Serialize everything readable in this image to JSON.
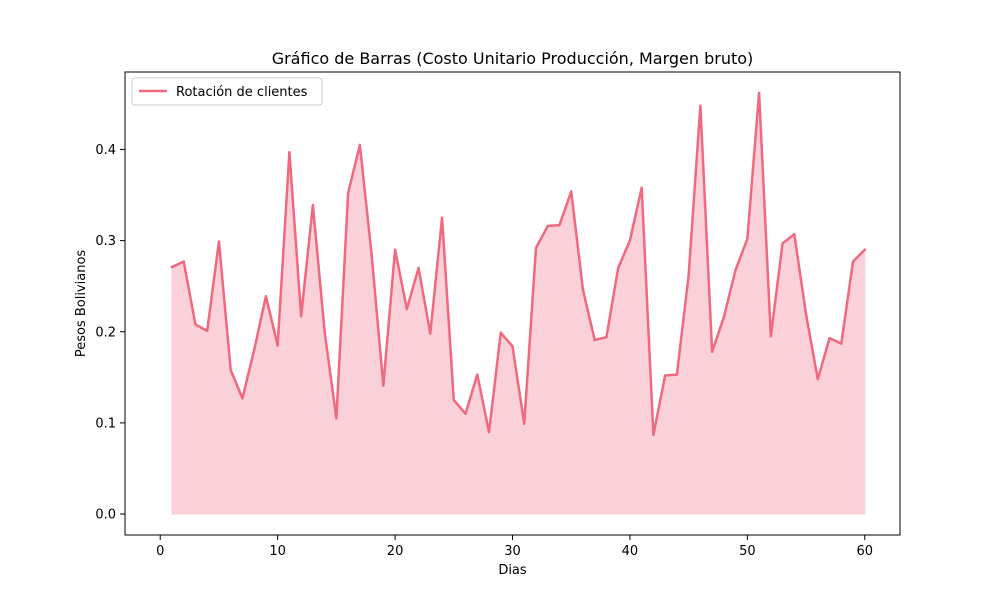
{
  "chart_data": {
    "type": "area",
    "title": "Gráfico de Barras (Costo Unitario Producción, Margen bruto)",
    "xlabel": "Dias",
    "ylabel": "Pesos Bolivianos",
    "xlim": [
      -3,
      63
    ],
    "ylim": [
      -0.023,
      0.485
    ],
    "xticks": [
      0,
      10,
      20,
      30,
      40,
      50,
      60
    ],
    "yticks": [
      0.0,
      0.1,
      0.2,
      0.3,
      0.4
    ],
    "ytick_labels": [
      "0.0",
      "0.1",
      "0.2",
      "0.3",
      "0.4"
    ],
    "grid": false,
    "legend_position": "top-left",
    "series": [
      {
        "name": "Rotación de clientes",
        "color": "#f0697f",
        "fill_color": "#fbd1d9",
        "x": [
          1,
          2,
          3,
          4,
          5,
          6,
          7,
          8,
          9,
          10,
          11,
          12,
          13,
          14,
          15,
          16,
          17,
          18,
          19,
          20,
          21,
          22,
          23,
          24,
          25,
          26,
          27,
          28,
          29,
          30,
          31,
          32,
          33,
          34,
          35,
          36,
          37,
          38,
          39,
          40,
          41,
          42,
          43,
          44,
          45,
          46,
          47,
          48,
          49,
          50,
          51,
          52,
          53,
          54,
          55,
          56,
          57,
          58,
          59,
          60
        ],
        "values": [
          0.271,
          0.277,
          0.208,
          0.201,
          0.299,
          0.158,
          0.127,
          0.18,
          0.239,
          0.185,
          0.397,
          0.217,
          0.339,
          0.2,
          0.105,
          0.352,
          0.405,
          0.285,
          0.141,
          0.29,
          0.225,
          0.27,
          0.198,
          0.325,
          0.125,
          0.11,
          0.153,
          0.09,
          0.199,
          0.184,
          0.099,
          0.292,
          0.316,
          0.317,
          0.354,
          0.246,
          0.191,
          0.194,
          0.27,
          0.3,
          0.358,
          0.087,
          0.152,
          0.153,
          0.262,
          0.448,
          0.178,
          0.216,
          0.268,
          0.302,
          0.462,
          0.195,
          0.297,
          0.307,
          0.219,
          0.148,
          0.193,
          0.187,
          0.277,
          0.29
        ]
      }
    ]
  }
}
